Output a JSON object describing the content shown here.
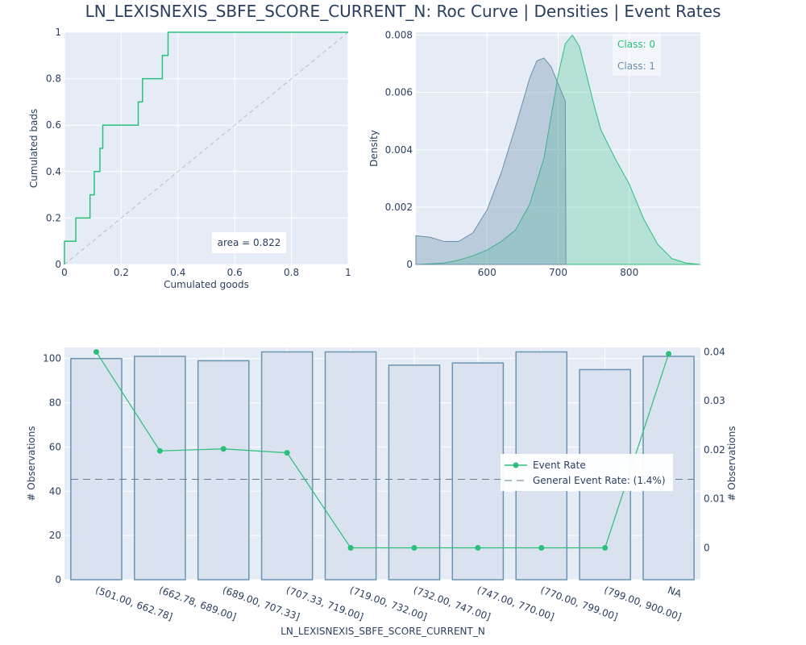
{
  "title": "LN_LEXISNEXIS_SBFE_SCORE_CURRENT_N: Roc Curve | Densities | Event Rates",
  "colors": {
    "plot_bg": "#e5ecf6",
    "class0": "#2bbf7a",
    "class1": "#6b8fab",
    "bar_fill": "#dae2ef",
    "bar_edge": "#6a94b0",
    "grid": "#ffffff",
    "text": "#2a3f5f"
  },
  "chart_data": [
    {
      "type": "line",
      "name": "roc",
      "xlabel": "Cumulated goods",
      "ylabel": "Cumulated bads",
      "xlim": [
        0,
        1
      ],
      "ylim": [
        0,
        1
      ],
      "xticks": [
        "0",
        "0.2",
        "0.4",
        "0.6",
        "0.8",
        "1"
      ],
      "yticks": [
        "0",
        "0.2",
        "0.4",
        "0.6",
        "0.8",
        "1"
      ],
      "annotation": "area = 0.822",
      "grid": true,
      "series": [
        {
          "x": [
            0,
            0,
            0.04,
            0.04,
            0.09,
            0.09,
            0.105,
            0.105,
            0.125,
            0.125,
            0.135,
            0.135,
            0.26,
            0.26,
            0.275,
            0.275,
            0.295,
            0.295,
            0.345,
            0.345,
            0.365,
            0.365,
            0.385,
            0.385,
            1.0
          ],
          "y": [
            0,
            0.1,
            0.1,
            0.2,
            0.2,
            0.3,
            0.3,
            0.4,
            0.4,
            0.5,
            0.5,
            0.6,
            0.6,
            0.7,
            0.7,
            0.8,
            0.8,
            0.8,
            0.8,
            0.9,
            0.9,
            1.0,
            1.0,
            1.0,
            1.0
          ]
        },
        {
          "x": [
            0,
            1
          ],
          "y": [
            0,
            1
          ],
          "style": "dashed"
        }
      ]
    },
    {
      "type": "area",
      "name": "densities",
      "ylabel": "Density",
      "xlim": [
        500,
        900
      ],
      "ylim": [
        0,
        0.0081
      ],
      "xticks": [
        600,
        700,
        800
      ],
      "yticks": [
        "0",
        "0.002",
        "0.004",
        "0.006",
        "0.008"
      ],
      "legend_position": "top-right",
      "grid": true,
      "series": [
        {
          "name": "Class: 0",
          "x": [
            500,
            520,
            540,
            560,
            580,
            600,
            620,
            640,
            660,
            680,
            700,
            710,
            720,
            730,
            740,
            750,
            760,
            780,
            800,
            820,
            840,
            860,
            880,
            900
          ],
          "y": [
            0,
            2e-05,
            5e-05,
            0.00015,
            0.0003,
            0.0005,
            0.0008,
            0.0012,
            0.0021,
            0.0037,
            0.0066,
            0.0077,
            0.008,
            0.0076,
            0.0066,
            0.0056,
            0.0047,
            0.0037,
            0.0028,
            0.0016,
            0.0007,
            0.0002,
            5e-05,
            0
          ]
        },
        {
          "name": "Class: 1",
          "x": [
            500,
            520,
            540,
            560,
            580,
            600,
            620,
            640,
            660,
            670,
            680,
            690,
            700,
            710,
            711
          ],
          "y": [
            0.001,
            0.00095,
            0.0008,
            0.0008,
            0.0011,
            0.0019,
            0.0032,
            0.0048,
            0.0065,
            0.0071,
            0.0072,
            0.0069,
            0.0063,
            0.0057,
            0
          ]
        }
      ]
    },
    {
      "type": "bar",
      "name": "event_rates",
      "xlabel": "LN_LEXISNEXIS_SBFE_SCORE_CURRENT_N",
      "ylabel": "# Observations",
      "y2label": "# Observations",
      "ylim": [
        0,
        105
      ],
      "y2lim": [
        -0.0065,
        0.0409
      ],
      "yticks": [
        0,
        20,
        40,
        60,
        80,
        100
      ],
      "y2ticks": [
        "0",
        "0.01",
        "0.02",
        "0.03",
        "0.04"
      ],
      "categories": [
        "(501.00, 662.78]",
        "(662.78, 689.00]",
        "(689.00, 707.33]",
        "(707.33, 719.00]",
        "(719.00, 732.00]",
        "(732.00, 747.00]",
        "(747.00, 770.00]",
        "(770.00, 799.00]",
        "(799.00, 900.00]",
        "NA"
      ],
      "values": [
        100,
        101,
        99,
        103,
        103,
        97,
        98,
        103,
        95,
        101
      ],
      "series": [
        {
          "name": "Event Rate",
          "values": [
            0.04,
            0.0198,
            0.0202,
            0.0194,
            0,
            0,
            0,
            0,
            0,
            0.0396
          ]
        },
        {
          "name": "General Event Rate: (1.4%)",
          "value": 0.014,
          "style": "dashed"
        }
      ],
      "legend_position": "center-right",
      "grid": true
    }
  ]
}
